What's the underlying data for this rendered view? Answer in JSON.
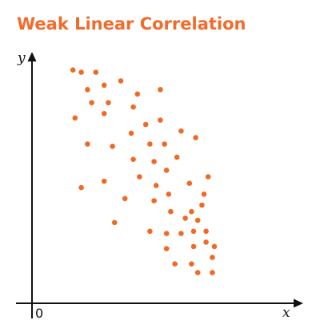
{
  "chart_data": {
    "type": "scatter",
    "title": "Weak Linear Correlation",
    "xlabel": "x",
    "ylabel": "y",
    "origin_label": "0",
    "xlim": [
      0,
      100
    ],
    "ylim": [
      0,
      100
    ],
    "grid": false,
    "marker_color": "#f06a27",
    "axis_color": "#111111",
    "points": [
      {
        "x": 12,
        "y": 99
      },
      {
        "x": 16,
        "y": 98
      },
      {
        "x": 23,
        "y": 98
      },
      {
        "x": 35,
        "y": 94
      },
      {
        "x": 27,
        "y": 92
      },
      {
        "x": 19,
        "y": 90
      },
      {
        "x": 54,
        "y": 90
      },
      {
        "x": 43,
        "y": 88
      },
      {
        "x": 21,
        "y": 84
      },
      {
        "x": 29,
        "y": 84
      },
      {
        "x": 41,
        "y": 82
      },
      {
        "x": 27,
        "y": 79
      },
      {
        "x": 13,
        "y": 77
      },
      {
        "x": 54,
        "y": 76
      },
      {
        "x": 47,
        "y": 74
      },
      {
        "x": 40,
        "y": 70
      },
      {
        "x": 64,
        "y": 71
      },
      {
        "x": 71,
        "y": 68
      },
      {
        "x": 19,
        "y": 65
      },
      {
        "x": 31,
        "y": 64
      },
      {
        "x": 49,
        "y": 65
      },
      {
        "x": 56,
        "y": 65
      },
      {
        "x": 62,
        "y": 59
      },
      {
        "x": 41,
        "y": 58
      },
      {
        "x": 51,
        "y": 57
      },
      {
        "x": 57,
        "y": 53
      },
      {
        "x": 77,
        "y": 50
      },
      {
        "x": 44,
        "y": 50
      },
      {
        "x": 27,
        "y": 48
      },
      {
        "x": 68,
        "y": 47
      },
      {
        "x": 16,
        "y": 45
      },
      {
        "x": 52,
        "y": 46
      },
      {
        "x": 58,
        "y": 42
      },
      {
        "x": 75,
        "y": 42
      },
      {
        "x": 37,
        "y": 40
      },
      {
        "x": 51,
        "y": 39
      },
      {
        "x": 74,
        "y": 37
      },
      {
        "x": 59,
        "y": 34
      },
      {
        "x": 69,
        "y": 34
      },
      {
        "x": 66,
        "y": 31
      },
      {
        "x": 32,
        "y": 29
      },
      {
        "x": 72,
        "y": 30
      },
      {
        "x": 49,
        "y": 25
      },
      {
        "x": 57,
        "y": 24
      },
      {
        "x": 64,
        "y": 24
      },
      {
        "x": 70,
        "y": 25
      },
      {
        "x": 76,
        "y": 25
      },
      {
        "x": 76,
        "y": 20
      },
      {
        "x": 80,
        "y": 18
      },
      {
        "x": 57,
        "y": 17
      },
      {
        "x": 70,
        "y": 18
      },
      {
        "x": 79,
        "y": 13
      },
      {
        "x": 61,
        "y": 10
      },
      {
        "x": 69,
        "y": 10
      },
      {
        "x": 72,
        "y": 6
      },
      {
        "x": 79,
        "y": 6
      }
    ]
  }
}
